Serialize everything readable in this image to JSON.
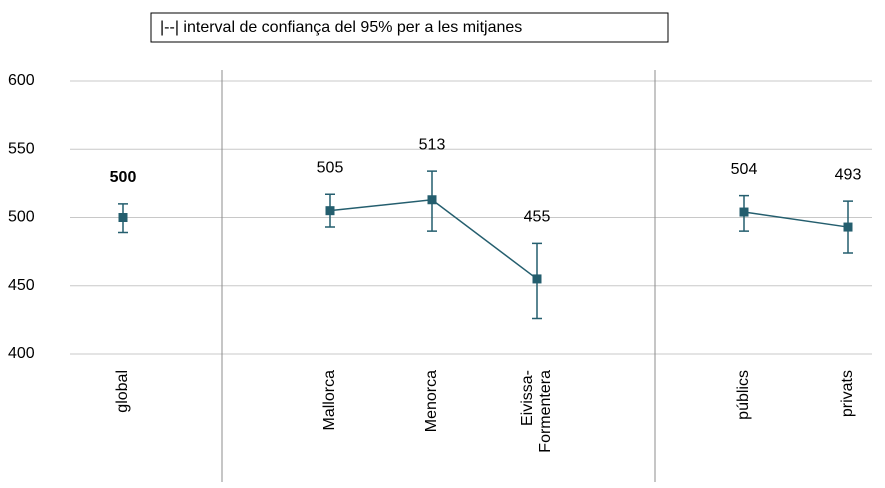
{
  "chart_data": {
    "type": "line",
    "legend_text": "|--|  interval de confiança del 95% per a les mitjanes",
    "categories": [
      "global",
      "Mallorca",
      "Menorca",
      "Eivissa-Formentera",
      "públics",
      "privats"
    ],
    "series": [
      {
        "color": "#245e6e",
        "values": [
          500,
          505,
          513,
          455,
          504,
          493
        ],
        "ci_low": [
          489,
          493,
          490,
          426,
          490,
          474
        ],
        "ci_high": [
          510,
          517,
          534,
          481,
          516,
          512
        ]
      }
    ],
    "ylim": [
      400,
      600
    ],
    "yticks": [
      400,
      450,
      500,
      550,
      600
    ],
    "grid": true
  }
}
